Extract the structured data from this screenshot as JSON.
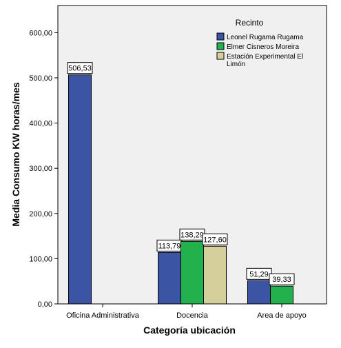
{
  "chart_data": {
    "type": "bar",
    "ylabel": "Media Consumo KW horas/mes",
    "xlabel": "Categoría ubicación",
    "categories": [
      "Oficina Administrativa",
      "Docencia",
      "Area de apoyo"
    ],
    "ylim": [
      0,
      660
    ],
    "yticks": [
      "0,00",
      "100,00",
      "200,00",
      "300,00",
      "400,00",
      "500,00",
      "600,00"
    ],
    "legend_title": "Recinto",
    "legend_position": "top-right",
    "grid": false,
    "series": [
      {
        "name": "Leonel Rugama Rugama",
        "color": "#3b54a4",
        "values": [
          506.53,
          113.79,
          51.29
        ],
        "labels": [
          "506,53",
          "113,79",
          "51,29"
        ]
      },
      {
        "name": "Elmer Cisneros Moreira",
        "color": "#22b14c",
        "values": [
          null,
          138.29,
          39.33
        ],
        "labels": [
          null,
          "138,29",
          "39,33"
        ]
      },
      {
        "name": "Estación Experimental El Limón",
        "color": "#d5cf9b",
        "values": [
          null,
          127.6,
          null
        ],
        "labels": [
          null,
          "127,60",
          null
        ]
      }
    ],
    "plot_background": "#f0f0f0"
  }
}
